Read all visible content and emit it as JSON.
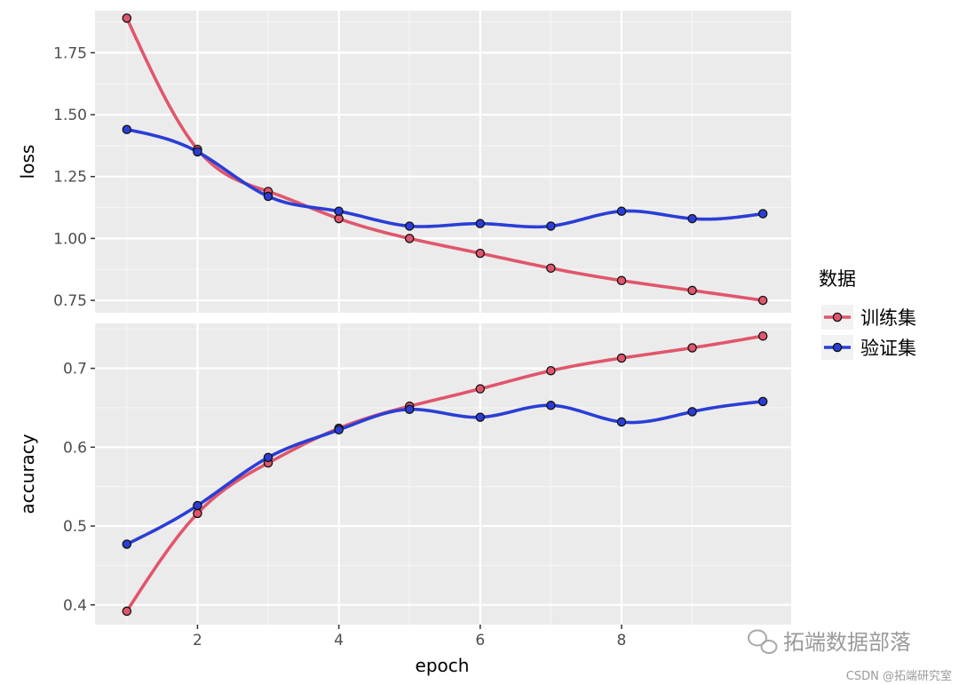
{
  "chart_data": {
    "type": "line",
    "xlabel": "epoch",
    "x": [
      1,
      2,
      3,
      4,
      5,
      6,
      7,
      8,
      9,
      10
    ],
    "x_ticks": [
      "2",
      "4",
      "6",
      "8"
    ],
    "x_tick_values": [
      2,
      4,
      6,
      8
    ],
    "xlim": [
      0.55,
      10.4
    ],
    "panels": [
      {
        "ylabel": "loss",
        "ylim": [
          0.7,
          1.92
        ],
        "y_ticks": [
          "0.75",
          "1.00",
          "1.25",
          "1.50",
          "1.75"
        ],
        "y_tick_values": [
          0.75,
          1.0,
          1.25,
          1.5,
          1.75
        ],
        "series": [
          {
            "name": "训练集",
            "color": "#E0566C",
            "values": [
              1.89,
              1.36,
              1.19,
              1.08,
              1.0,
              0.94,
              0.88,
              0.83,
              0.79,
              0.75
            ]
          },
          {
            "name": "验证集",
            "color": "#2A3ED6",
            "values": [
              1.44,
              1.35,
              1.17,
              1.11,
              1.05,
              1.06,
              1.05,
              1.11,
              1.08,
              1.1
            ]
          }
        ]
      },
      {
        "ylabel": "accuracy",
        "ylim": [
          0.375,
          0.757
        ],
        "y_ticks": [
          "0.4",
          "0.5",
          "0.6",
          "0.7"
        ],
        "y_tick_values": [
          0.4,
          0.5,
          0.6,
          0.7
        ],
        "series": [
          {
            "name": "训练集",
            "color": "#E0566C",
            "values": [
              0.392,
              0.516,
              0.58,
              0.624,
              0.652,
              0.674,
              0.697,
              0.713,
              0.726,
              0.741
            ]
          },
          {
            "name": "验证集",
            "color": "#2A3ED6",
            "values": [
              0.477,
              0.526,
              0.587,
              0.622,
              0.648,
              0.638,
              0.653,
              0.632,
              0.645,
              0.658
            ]
          }
        ]
      }
    ],
    "legend": {
      "title": "数据",
      "position": "right"
    },
    "grid": true,
    "background": "#EBEBEB"
  },
  "watermark": {
    "main": "拓端数据部落",
    "sub": "CSDN @拓端研究室"
  }
}
